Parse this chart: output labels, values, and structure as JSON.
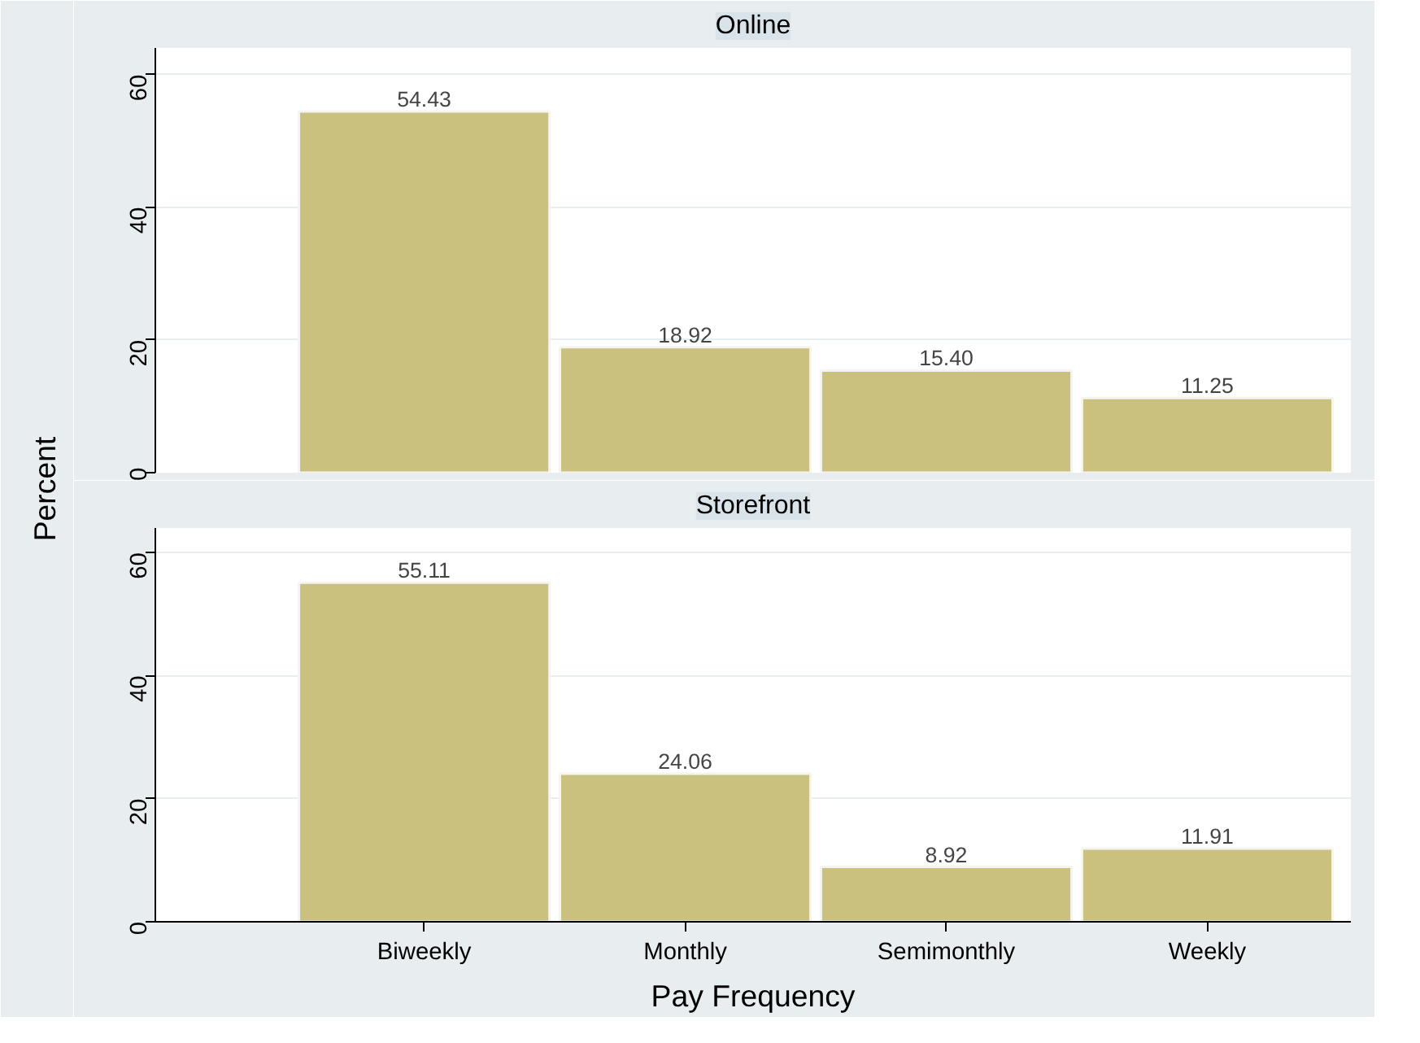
{
  "chart_data": [
    {
      "type": "bar",
      "title": "Online",
      "ylabel": "Percent",
      "values": [
        54.43,
        18.92,
        15.4,
        11.25
      ],
      "value_labels": [
        "54.43",
        "18.92",
        "15.40",
        "11.25"
      ],
      "color": "#cbc17f",
      "ylim": [
        0,
        64
      ],
      "yticks": [
        0,
        20,
        40,
        60
      ],
      "grid": "y",
      "tick_labels": "y"
    },
    {
      "type": "bar",
      "title": "Storefront",
      "xlabel": "Pay Frequency",
      "categories": [
        "Biweekly",
        "Monthly",
        "Semimonthly",
        "Weekly"
      ],
      "values": [
        55.11,
        24.06,
        8.92,
        11.91
      ],
      "value_labels": [
        "55.11",
        "24.06",
        "8.92",
        "11.91"
      ],
      "color": "#cbc17f",
      "ylim": [
        0,
        64
      ],
      "yticks": [
        0,
        20,
        40,
        60
      ],
      "grid": "y"
    }
  ]
}
